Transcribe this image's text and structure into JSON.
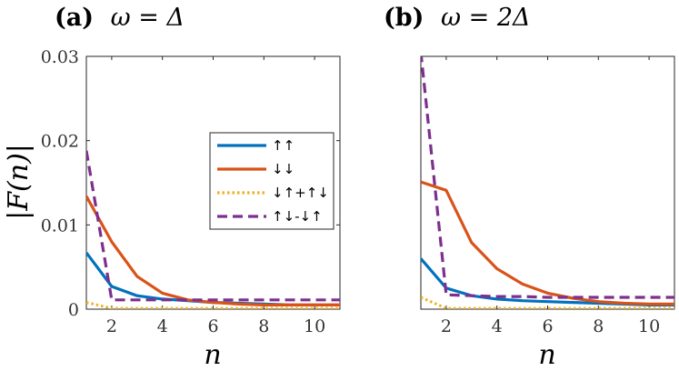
{
  "chart_data": [
    {
      "type": "line",
      "panel_label": "(a)",
      "title_math": "ω = Δ",
      "xlabel": "n",
      "ylabel": "|F(n)|",
      "xlim": [
        1,
        11
      ],
      "ylim": [
        0,
        0.03
      ],
      "x_ticks": [
        2,
        4,
        6,
        8,
        10
      ],
      "y_ticks": [
        "0",
        "0.01",
        "0.02",
        "0.03"
      ],
      "y_tick_values": [
        0,
        0.01,
        0.02,
        0.03
      ],
      "x": [
        1,
        2,
        3,
        4,
        5,
        6,
        7,
        8,
        9,
        10,
        11
      ],
      "legend": {
        "position": "right-center"
      },
      "series": [
        {
          "name": "↑↑",
          "color": "#0072BD",
          "style": "solid",
          "values": [
            0.0067,
            0.0027,
            0.0016,
            0.0012,
            0.001,
            0.0008,
            0.0007,
            0.0006,
            0.0005,
            0.0005,
            0.0005
          ]
        },
        {
          "name": "↓↓",
          "color": "#D95319",
          "style": "solid",
          "values": [
            0.0134,
            0.008,
            0.0039,
            0.0019,
            0.0011,
            0.0008,
            0.0006,
            0.0005,
            0.0005,
            0.0005,
            0.0005
          ]
        },
        {
          "name": "↓↑+↑↓",
          "color": "#EDB120",
          "style": "dotted",
          "values": [
            0.0008,
            0.0001,
            0.0001,
            0.0001,
            0.0001,
            0.0001,
            0.0001,
            0.0001,
            0.0001,
            0.0001,
            0.0001
          ]
        },
        {
          "name": "↑↓-↓↑",
          "color": "#7E2F8E",
          "style": "dashed",
          "values": [
            0.0188,
            0.0011,
            0.0011,
            0.0011,
            0.0011,
            0.0011,
            0.0011,
            0.0011,
            0.0011,
            0.0011,
            0.0011
          ]
        }
      ]
    },
    {
      "type": "line",
      "panel_label": "(b)",
      "title_math": "ω = 2Δ",
      "xlabel": "n",
      "ylabel": "",
      "xlim": [
        1,
        11
      ],
      "ylim": [
        0,
        0.03
      ],
      "x_ticks": [
        2,
        4,
        6,
        8,
        10
      ],
      "y_ticks": [],
      "x": [
        1,
        2,
        3,
        4,
        5,
        6,
        7,
        8,
        9,
        10,
        11
      ],
      "series": [
        {
          "name": "↑↑",
          "color": "#0072BD",
          "style": "solid",
          "values": [
            0.006,
            0.0025,
            0.0016,
            0.0012,
            0.001,
            0.0009,
            0.0008,
            0.0007,
            0.0006,
            0.0005,
            0.0005
          ]
        },
        {
          "name": "↓↓",
          "color": "#D95319",
          "style": "solid",
          "values": [
            0.0151,
            0.0141,
            0.0079,
            0.0048,
            0.003,
            0.0019,
            0.0013,
            0.0009,
            0.0007,
            0.0006,
            0.0006
          ]
        },
        {
          "name": "↓↑+↑↓",
          "color": "#EDB120",
          "style": "dotted",
          "values": [
            0.0014,
            0.0001,
            0.0001,
            0.0001,
            0.0001,
            0.0001,
            0.0001,
            0.0001,
            0.0001,
            0.0001,
            0.0001
          ]
        },
        {
          "name": "↑↓-↓↑",
          "color": "#7E2F8E",
          "style": "dashed",
          "values": [
            0.0305,
            0.0017,
            0.0016,
            0.0015,
            0.0015,
            0.0014,
            0.0014,
            0.0014,
            0.0014,
            0.0014,
            0.0014
          ]
        }
      ]
    }
  ]
}
